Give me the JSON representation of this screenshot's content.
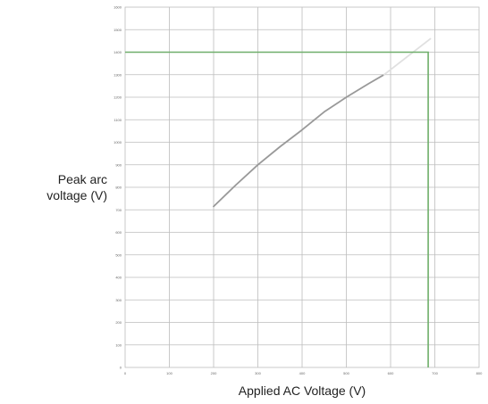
{
  "chart_data": {
    "type": "line",
    "title": "",
    "xlabel": "Applied AC Voltage (V)",
    "ylabel_line1": "Peak arc",
    "ylabel_line2": "voltage (V)",
    "xlim": [
      0,
      800
    ],
    "ylim": [
      0,
      1600
    ],
    "grid": true,
    "x_ticks": [
      "0",
      "100",
      "200",
      "300",
      "400",
      "500",
      "600",
      "700",
      "800"
    ],
    "y_ticks": [
      "0",
      "100",
      "200",
      "300",
      "400",
      "500",
      "600",
      "700",
      "800",
      "900",
      "1000",
      "1100",
      "1200",
      "1300",
      "1400",
      "1500",
      "1600"
    ],
    "series": [
      {
        "color": "#999999",
        "x": [
          200,
          250,
          300,
          350,
          400,
          450,
          500,
          550,
          585
        ],
        "y": [
          715,
          810,
          900,
          980,
          1055,
          1135,
          1200,
          1260,
          1300
        ]
      },
      {
        "color": "#e0e0e0",
        "x": [
          585,
          690
        ],
        "y": [
          1300,
          1460
        ]
      }
    ],
    "annotation": {
      "color": "#6fae6a",
      "x": 685,
      "y": 1400
    }
  }
}
